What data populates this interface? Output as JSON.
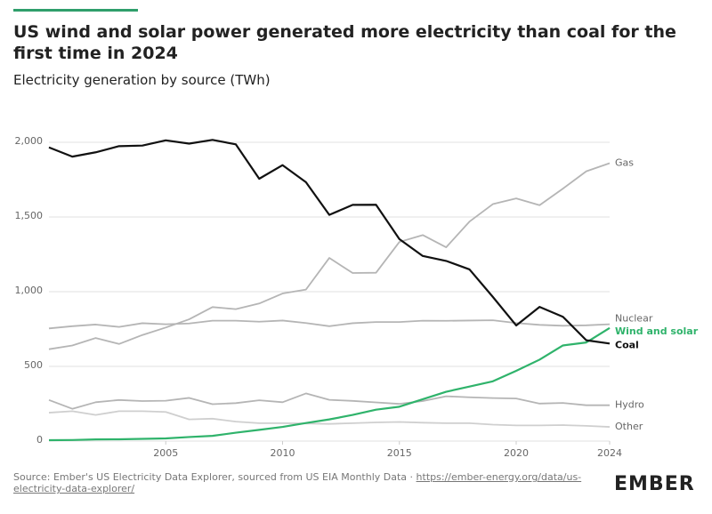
{
  "chart_data": {
    "type": "line",
    "title": "US wind and solar power generated more electricity than coal for the first time in 2024",
    "subtitle": "Electricity generation by source (TWh)",
    "x": [
      2000,
      2001,
      2002,
      2003,
      2004,
      2005,
      2006,
      2007,
      2008,
      2009,
      2010,
      2011,
      2012,
      2013,
      2014,
      2015,
      2016,
      2017,
      2018,
      2019,
      2020,
      2021,
      2022,
      2023,
      2024
    ],
    "xlim": [
      2000,
      2024
    ],
    "xticks": [
      2005,
      2010,
      2015,
      2020,
      2024
    ],
    "ylim": [
      0,
      2000
    ],
    "yticks": [
      0,
      500,
      {
        "value": 1000,
        "label": "1,000"
      },
      {
        "value": 1500,
        "label": "1,500"
      },
      {
        "value": 2000,
        "label": "2,000"
      }
    ],
    "grid": true,
    "series": [
      {
        "name": "Gas",
        "color": "#b5b5b5",
        "values": [
          615,
          640,
          690,
          650,
          710,
          760,
          815,
          897,
          883,
          921,
          988,
          1014,
          1226,
          1125,
          1127,
          1333,
          1379,
          1297,
          1469,
          1586,
          1624,
          1579,
          1690,
          1806,
          1860
        ]
      },
      {
        "name": "Nuclear",
        "color": "#b5b5b5",
        "values": [
          754,
          769,
          780,
          764,
          789,
          782,
          787,
          806,
          806,
          799,
          807,
          790,
          769,
          789,
          797,
          797,
          806,
          805,
          807,
          809,
          790,
          778,
          772,
          775,
          782
        ]
      },
      {
        "name": "Hydro",
        "color": "#b5b5b5",
        "values": [
          275,
          216,
          260,
          275,
          268,
          270,
          289,
          247,
          254,
          273,
          260,
          319,
          276,
          269,
          259,
          249,
          268,
          300,
          293,
          288,
          285,
          251,
          255,
          240,
          240
        ]
      },
      {
        "name": "Other",
        "color": "#cfcfcf",
        "values": [
          190,
          200,
          175,
          200,
          200,
          195,
          145,
          150,
          130,
          120,
          120,
          118,
          115,
          120,
          125,
          128,
          123,
          120,
          120,
          110,
          105,
          105,
          107,
          102,
          95
        ]
      },
      {
        "name": "Wind and solar",
        "color": "#2fb36b",
        "values": [
          6,
          7,
          11,
          12,
          15,
          18,
          27,
          35,
          56,
          75,
          95,
          121,
          145,
          175,
          210,
          230,
          280,
          330,
          365,
          400,
          470,
          545,
          640,
          660,
          757
        ]
      },
      {
        "name": "Coal",
        "color": "#111111",
        "values": [
          1966,
          1904,
          1933,
          1974,
          1978,
          2013,
          1991,
          2016,
          1986,
          1756,
          1847,
          1733,
          1514,
          1581,
          1582,
          1352,
          1239,
          1206,
          1149,
          965,
          774,
          898,
          832,
          675,
          653
        ]
      }
    ]
  },
  "footer": {
    "source": "Source: Ember's US Electricity Data Explorer, sourced from US EIA Monthly Data · ",
    "source_link": "https://ember-energy.org/data/us-electricity-data-explorer/",
    "logo": "EMBER"
  }
}
